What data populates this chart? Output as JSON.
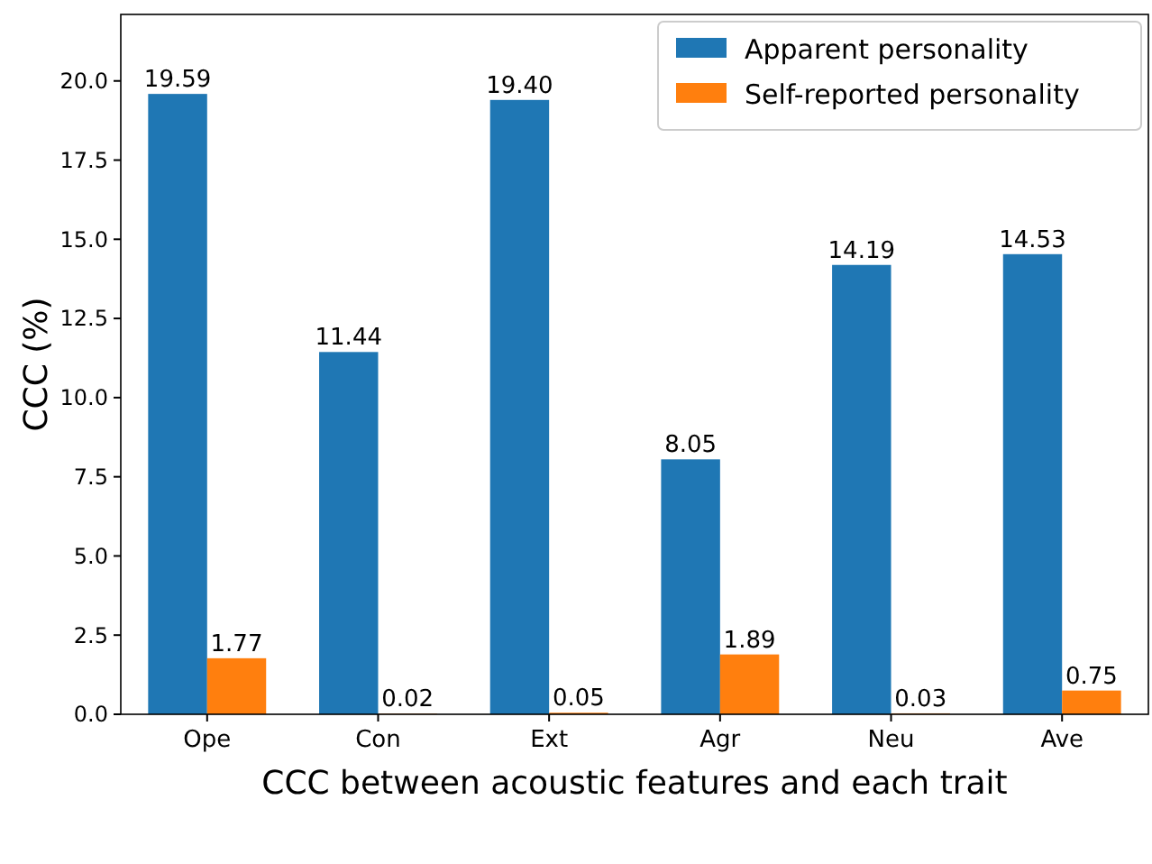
{
  "chart_data": {
    "type": "bar",
    "xlabel": "CCC between acoustic features and each trait",
    "ylabel": "CCC (%)",
    "categories": [
      "Ope",
      "Con",
      "Ext",
      "Agr",
      "Neu",
      "Ave"
    ],
    "series": [
      {
        "name": "Apparent personality",
        "color": "#1f77b4",
        "values": [
          19.59,
          11.44,
          19.4,
          8.05,
          14.19,
          14.53
        ],
        "value_labels": [
          "19.59",
          "11.44",
          "19.40",
          "8.05",
          "14.19",
          "14.53"
        ]
      },
      {
        "name": "Self-reported personality",
        "color": "#ff7f0e",
        "values": [
          1.77,
          0.02,
          0.05,
          1.89,
          0.03,
          0.75
        ],
        "value_labels": [
          "1.77",
          "0.02",
          "0.05",
          "1.89",
          "0.03",
          "0.75"
        ]
      }
    ],
    "ylim": [
      0,
      22.1
    ],
    "yticks": [
      {
        "value": 0,
        "label": "0.0"
      },
      {
        "value": 2.5,
        "label": "2.5"
      },
      {
        "value": 5,
        "label": "5.0"
      },
      {
        "value": 7.5,
        "label": "7.5"
      },
      {
        "value": 10,
        "label": "10.0"
      },
      {
        "value": 12.5,
        "label": "12.5"
      },
      {
        "value": 15,
        "label": "15.0"
      },
      {
        "value": 17.5,
        "label": "17.5"
      },
      {
        "value": 20,
        "label": "20.0"
      }
    ],
    "grid": false,
    "legend": "top right"
  }
}
